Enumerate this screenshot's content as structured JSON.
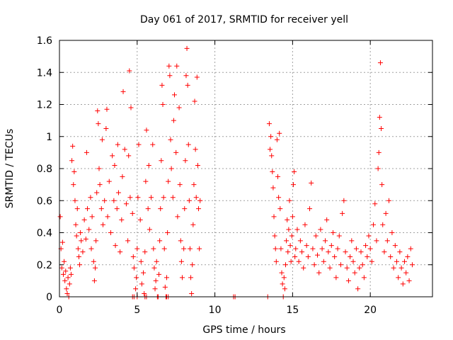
{
  "chart_data": {
    "type": "scatter",
    "title": "Day 061 of 2017, SRMTID for receiver yell",
    "xlabel": "GPS time / hours",
    "ylabel": "SRMTID / TECUs",
    "xlim": [
      0,
      24
    ],
    "ylim": [
      0,
      1.6
    ],
    "xticks": [
      0,
      5,
      10,
      15,
      20
    ],
    "xtick_labels": [
      "0",
      "5",
      "10",
      "15",
      "20"
    ],
    "yticks": [
      0,
      0.2,
      0.4,
      0.6,
      0.8,
      1.0,
      1.2,
      1.4,
      1.6
    ],
    "ytick_labels": [
      "0",
      "0.2",
      "0.4",
      "0.6",
      "0.8",
      "1",
      "1.2",
      "1.4",
      "1.6"
    ],
    "grid": true,
    "marker": "+",
    "series_color": "#ff0000",
    "series": [
      {
        "name": "SRMTID",
        "points": [
          [
            0.05,
            0.5
          ],
          [
            0.1,
            0.3
          ],
          [
            0.15,
            0.18
          ],
          [
            0.2,
            0.34
          ],
          [
            0.25,
            0.14
          ],
          [
            0.3,
            0.22
          ],
          [
            0.35,
            0.1
          ],
          [
            0.4,
            0.16
          ],
          [
            0.45,
            0.05
          ],
          [
            0.5,
            0.02
          ],
          [
            0.55,
            0.12
          ],
          [
            0.6,
            0.0
          ],
          [
            0.65,
            0.08
          ],
          [
            0.7,
            0.18
          ],
          [
            0.75,
            0.14
          ],
          [
            0.8,
            0.85
          ],
          [
            0.85,
            0.94
          ],
          [
            0.9,
            0.7
          ],
          [
            0.95,
            0.78
          ],
          [
            1.0,
            0.6
          ],
          [
            1.05,
            0.45
          ],
          [
            1.1,
            0.38
          ],
          [
            1.15,
            0.55
          ],
          [
            1.2,
            0.3
          ],
          [
            1.25,
            0.25
          ],
          [
            1.3,
            0.2
          ],
          [
            1.35,
            0.4
          ],
          [
            1.4,
            0.35
          ],
          [
            1.5,
            0.28
          ],
          [
            1.6,
            0.48
          ],
          [
            1.7,
            0.36
          ],
          [
            1.75,
            0.9
          ],
          [
            1.8,
            0.55
          ],
          [
            1.9,
            0.42
          ],
          [
            2.0,
            0.62
          ],
          [
            2.05,
            0.3
          ],
          [
            2.1,
            0.5
          ],
          [
            2.2,
            0.22
          ],
          [
            2.25,
            0.1
          ],
          [
            2.3,
            0.18
          ],
          [
            2.35,
            0.35
          ],
          [
            2.4,
            0.65
          ],
          [
            2.45,
            1.16
          ],
          [
            2.5,
            1.08
          ],
          [
            2.55,
            0.8
          ],
          [
            2.6,
            0.7
          ],
          [
            2.7,
            0.55
          ],
          [
            2.75,
            0.98
          ],
          [
            2.8,
            0.45
          ],
          [
            2.9,
            0.6
          ],
          [
            3.0,
            1.05
          ],
          [
            3.05,
            1.17
          ],
          [
            3.1,
            0.5
          ],
          [
            3.2,
            0.72
          ],
          [
            3.3,
            0.4
          ],
          [
            3.4,
            0.88
          ],
          [
            3.5,
            0.6
          ],
          [
            3.55,
            0.82
          ],
          [
            3.6,
            0.32
          ],
          [
            3.7,
            0.55
          ],
          [
            3.75,
            0.95
          ],
          [
            3.8,
            0.65
          ],
          [
            3.9,
            0.28
          ],
          [
            4.0,
            0.48
          ],
          [
            4.05,
            0.75
          ],
          [
            4.1,
            1.28
          ],
          [
            4.2,
            0.92
          ],
          [
            4.3,
            0.58
          ],
          [
            4.4,
            0.35
          ],
          [
            4.45,
            0.88
          ],
          [
            4.5,
            1.41
          ],
          [
            4.55,
            0.62
          ],
          [
            4.6,
            1.18
          ],
          [
            4.7,
            0.52
          ],
          [
            4.75,
            0.25
          ],
          [
            4.8,
            0.18
          ],
          [
            4.9,
            0.05
          ],
          [
            4.95,
            0.12
          ],
          [
            5.0,
            0.3
          ],
          [
            5.05,
            0.62
          ],
          [
            5.1,
            0.95
          ],
          [
            5.2,
            0.48
          ],
          [
            5.25,
            0.22
          ],
          [
            5.3,
            0.08
          ],
          [
            5.4,
            0.15
          ],
          [
            5.45,
            0.02
          ],
          [
            5.5,
            0.28
          ],
          [
            5.55,
            0.72
          ],
          [
            5.6,
            1.04
          ],
          [
            5.7,
            0.55
          ],
          [
            5.75,
            0.82
          ],
          [
            5.8,
            0.42
          ],
          [
            5.9,
            0.62
          ],
          [
            6.0,
            0.95
          ],
          [
            6.05,
            0.3
          ],
          [
            6.1,
            0.18
          ],
          [
            6.15,
            0.05
          ],
          [
            6.2,
            0.1
          ],
          [
            6.25,
            0.22
          ],
          [
            6.3,
            0.0
          ],
          [
            6.4,
            0.14
          ],
          [
            6.45,
            0.35
          ],
          [
            6.5,
            0.55
          ],
          [
            6.55,
            0.85
          ],
          [
            6.6,
            1.32
          ],
          [
            6.65,
            1.2
          ],
          [
            6.7,
            0.62
          ],
          [
            6.75,
            0.3
          ],
          [
            6.8,
            0.06
          ],
          [
            6.85,
            0.0
          ],
          [
            6.9,
            0.12
          ],
          [
            6.95,
            0.4
          ],
          [
            7.0,
            0.72
          ],
          [
            7.05,
            1.44
          ],
          [
            7.1,
            1.38
          ],
          [
            7.15,
            0.98
          ],
          [
            7.2,
            0.8
          ],
          [
            7.3,
            0.62
          ],
          [
            7.35,
            1.1
          ],
          [
            7.4,
            1.26
          ],
          [
            7.5,
            0.9
          ],
          [
            7.55,
            1.44
          ],
          [
            7.6,
            0.5
          ],
          [
            7.7,
            1.18
          ],
          [
            7.75,
            0.7
          ],
          [
            7.8,
            0.35
          ],
          [
            7.85,
            0.22
          ],
          [
            7.9,
            0.12
          ],
          [
            8.0,
            0.3
          ],
          [
            8.05,
            0.55
          ],
          [
            8.1,
            0.85
          ],
          [
            8.15,
            1.38
          ],
          [
            8.2,
            1.55
          ],
          [
            8.25,
            1.32
          ],
          [
            8.3,
            0.95
          ],
          [
            8.35,
            0.6
          ],
          [
            8.4,
            0.3
          ],
          [
            8.45,
            0.12
          ],
          [
            8.5,
            0.02
          ],
          [
            8.55,
            0.2
          ],
          [
            8.6,
            0.45
          ],
          [
            8.65,
            0.7
          ],
          [
            8.7,
            1.22
          ],
          [
            8.75,
            0.92
          ],
          [
            8.8,
            0.62
          ],
          [
            8.85,
            1.37
          ],
          [
            8.9,
            0.82
          ],
          [
            8.95,
            0.55
          ],
          [
            9.0,
            0.3
          ],
          [
            9.05,
            0.6
          ],
          [
            4.7,
            0.0
          ],
          [
            4.8,
            0.0
          ],
          [
            5.0,
            0.0
          ],
          [
            5.5,
            0.0
          ],
          [
            5.6,
            0.0
          ],
          [
            6.35,
            0.0
          ],
          [
            6.9,
            0.0
          ],
          [
            7.0,
            0.0
          ],
          [
            11.2,
            0.0
          ],
          [
            11.3,
            0.0
          ],
          [
            13.4,
            0.0
          ],
          [
            13.5,
            1.08
          ],
          [
            13.55,
            0.92
          ],
          [
            13.6,
            1.0
          ],
          [
            13.65,
            0.88
          ],
          [
            13.7,
            0.78
          ],
          [
            13.75,
            0.68
          ],
          [
            13.8,
            0.5
          ],
          [
            13.85,
            0.38
          ],
          [
            13.9,
            0.3
          ],
          [
            13.95,
            0.22
          ],
          [
            14.0,
            0.98
          ],
          [
            14.05,
            0.75
          ],
          [
            14.1,
            0.62
          ],
          [
            14.15,
            1.02
          ],
          [
            14.2,
            0.55
          ],
          [
            14.25,
            0.3
          ],
          [
            14.3,
            0.15
          ],
          [
            14.35,
            0.08
          ],
          [
            14.4,
            0.0
          ],
          [
            14.45,
            0.12
          ],
          [
            14.5,
            0.05
          ],
          [
            14.55,
            0.2
          ],
          [
            14.6,
            0.35
          ],
          [
            14.65,
            0.48
          ],
          [
            14.7,
            0.28
          ],
          [
            14.75,
            0.42
          ],
          [
            14.8,
            0.6
          ],
          [
            14.85,
            0.32
          ],
          [
            14.9,
            0.22
          ],
          [
            14.95,
            0.38
          ],
          [
            15.0,
            0.5
          ],
          [
            15.05,
            0.7
          ],
          [
            15.1,
            0.78
          ],
          [
            15.15,
            0.25
          ],
          [
            15.2,
            0.3
          ],
          [
            15.3,
            0.42
          ],
          [
            15.4,
            0.22
          ],
          [
            15.5,
            0.35
          ],
          [
            15.6,
            0.28
          ],
          [
            15.7,
            0.18
          ],
          [
            15.8,
            0.45
          ],
          [
            15.9,
            0.32
          ],
          [
            16.0,
            0.25
          ],
          [
            16.1,
            0.55
          ],
          [
            16.2,
            0.71
          ],
          [
            16.3,
            0.3
          ],
          [
            16.4,
            0.2
          ],
          [
            16.5,
            0.38
          ],
          [
            16.6,
            0.26
          ],
          [
            16.7,
            0.15
          ],
          [
            16.8,
            0.42
          ],
          [
            16.9,
            0.3
          ],
          [
            17.0,
            0.22
          ],
          [
            17.1,
            0.35
          ],
          [
            17.2,
            0.48
          ],
          [
            17.3,
            0.28
          ],
          [
            17.4,
            0.18
          ],
          [
            17.5,
            0.32
          ],
          [
            17.6,
            0.4
          ],
          [
            17.7,
            0.25
          ],
          [
            17.8,
            0.12
          ],
          [
            17.9,
            0.3
          ],
          [
            18.0,
            0.38
          ],
          [
            18.1,
            0.2
          ],
          [
            18.2,
            0.52
          ],
          [
            18.3,
            0.6
          ],
          [
            18.4,
            0.28
          ],
          [
            18.5,
            0.18
          ],
          [
            18.6,
            0.1
          ],
          [
            18.7,
            0.25
          ],
          [
            18.8,
            0.35
          ],
          [
            18.9,
            0.22
          ],
          [
            19.0,
            0.15
          ],
          [
            19.1,
            0.3
          ],
          [
            19.2,
            0.05
          ],
          [
            19.3,
            0.18
          ],
          [
            19.4,
            0.28
          ],
          [
            19.5,
            0.2
          ],
          [
            19.6,
            0.12
          ],
          [
            19.7,
            0.32
          ],
          [
            19.8,
            0.25
          ],
          [
            19.9,
            0.38
          ],
          [
            20.0,
            0.3
          ],
          [
            20.1,
            0.22
          ],
          [
            20.2,
            0.45
          ],
          [
            20.3,
            0.58
          ],
          [
            20.4,
            0.35
          ],
          [
            20.5,
            0.8
          ],
          [
            20.55,
            0.9
          ],
          [
            20.6,
            1.12
          ],
          [
            20.65,
            1.46
          ],
          [
            20.7,
            1.05
          ],
          [
            20.75,
            0.7
          ],
          [
            20.8,
            0.45
          ],
          [
            20.9,
            0.28
          ],
          [
            21.0,
            0.52
          ],
          [
            21.1,
            0.35
          ],
          [
            21.2,
            0.6
          ],
          [
            21.3,
            0.25
          ],
          [
            21.4,
            0.4
          ],
          [
            21.5,
            0.18
          ],
          [
            21.6,
            0.32
          ],
          [
            21.7,
            0.22
          ],
          [
            21.8,
            0.12
          ],
          [
            21.9,
            0.28
          ],
          [
            22.0,
            0.18
          ],
          [
            22.1,
            0.08
          ],
          [
            22.2,
            0.22
          ],
          [
            22.3,
            0.15
          ],
          [
            22.4,
            0.25
          ],
          [
            22.5,
            0.1
          ],
          [
            22.6,
            0.3
          ],
          [
            22.7,
            0.2
          ]
        ]
      }
    ]
  }
}
